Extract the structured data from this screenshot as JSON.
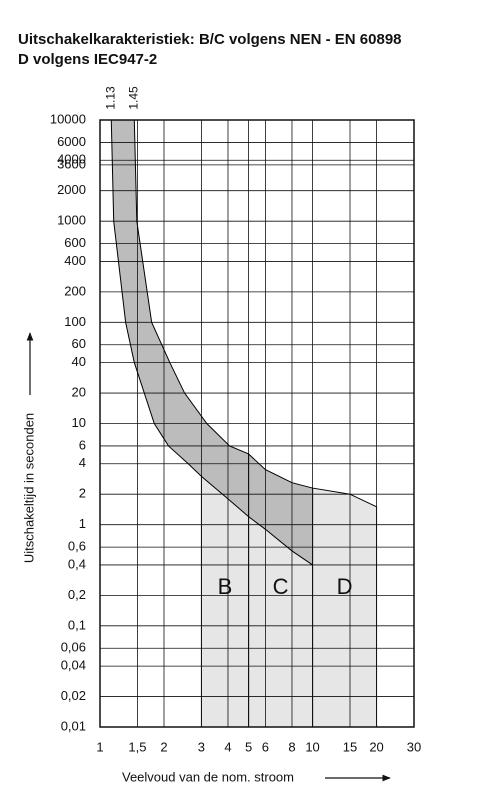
{
  "chart_data": {
    "type": "line",
    "title": "Uitschakelkarakteristiek: B/C volgens NEN - EN 60898",
    "subtitle": "D volgens IEC947-2",
    "x_label": "Veelvoud van de nom. stroom",
    "y_label": "Uitschakeltijd in seconden",
    "x_scale": "log",
    "y_scale": "log",
    "grid": true,
    "xlim": [
      1,
      30
    ],
    "ylim": [
      0.01,
      10000
    ],
    "xticks": [
      1,
      {
        "value": 1.5,
        "label": "1,5"
      },
      2,
      3,
      4,
      5,
      6,
      8,
      10,
      15,
      20,
      30
    ],
    "yticks": [
      10000,
      6000,
      4000,
      3600,
      2000,
      1000,
      600,
      400,
      200,
      100,
      60,
      40,
      20,
      10,
      6,
      4,
      2,
      1,
      {
        "value": 0.6,
        "label": "0,6"
      },
      {
        "value": 0.4,
        "label": "0,4"
      },
      {
        "value": 0.2,
        "label": "0,2"
      },
      {
        "value": 0.1,
        "label": "0,1"
      },
      {
        "value": 0.06,
        "label": "0,06"
      },
      {
        "value": 0.04,
        "label": "0,04"
      },
      {
        "value": 0.02,
        "label": "0,02"
      },
      {
        "value": 0.01,
        "label": "0,01"
      }
    ],
    "top_markers": [
      1.13,
      1.45
    ],
    "series": [
      {
        "color": "#000000",
        "x": [
          1.13,
          1.16,
          1.32,
          1.45,
          1.8,
          2.1,
          2.6,
          3,
          4,
          5,
          6,
          8,
          10
        ],
        "values": [
          10000,
          1000,
          100,
          40,
          10,
          6,
          4,
          3,
          1.8,
          1.2,
          0.9,
          0.55,
          0.4
        ]
      },
      {
        "color": "#000000",
        "x": [
          1.45,
          1.49,
          1.75,
          2.13,
          2.5,
          3.18,
          4.07,
          5,
          6,
          8,
          10,
          15,
          20
        ],
        "values": [
          10000,
          1000,
          100,
          40,
          20,
          10,
          6,
          5,
          3.5,
          2.6,
          2.3,
          2,
          1.5
        ]
      }
    ],
    "trip_ranges": [
      {
        "label": "B",
        "x": [
          3,
          5
        ]
      },
      {
        "label": "C",
        "x": [
          5,
          10
        ]
      },
      {
        "label": "D",
        "x": [
          10,
          20
        ]
      }
    ],
    "band_color": "#bcbcbc",
    "zone_color": "#e6e6e6"
  }
}
